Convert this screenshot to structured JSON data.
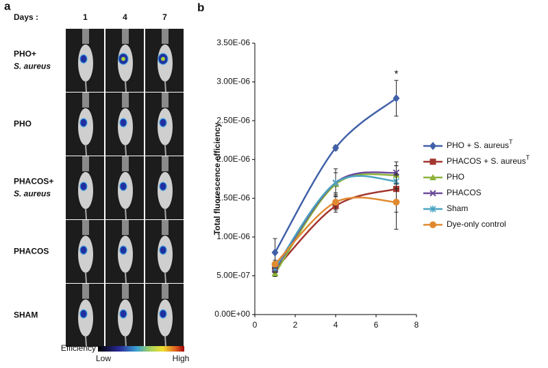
{
  "panel_a": {
    "label": "a",
    "days_label": "Days :",
    "days": [
      "1",
      "4",
      "7"
    ],
    "rows": [
      {
        "label": "PHO+",
        "label_italic": "S. aureus"
      },
      {
        "label": "PHO"
      },
      {
        "label": "PHACOS+",
        "label_italic": "S. aureus"
      },
      {
        "label": "PHACOS"
      },
      {
        "label": "SHAM"
      }
    ],
    "colorbar": {
      "title": "Efficiency",
      "low": "Low",
      "high": "High"
    }
  },
  "chart_data": {
    "type": "line",
    "panel_label": "b",
    "y_label": "Total fluorescence efficiency",
    "x": [
      1,
      4,
      7
    ],
    "xlim": [
      0,
      8
    ],
    "xticks": [
      0,
      2,
      4,
      6,
      8
    ],
    "ylim": [
      0,
      3.5e-06
    ],
    "yticks": [
      {
        "value": 0,
        "label": "0.00E+00"
      },
      {
        "value": 5e-07,
        "label": "5.00E-07"
      },
      {
        "value": 1e-06,
        "label": "1.00E-06"
      },
      {
        "value": 1.5e-06,
        "label": "1.50E-06"
      },
      {
        "value": 2e-06,
        "label": "2.00E-06"
      },
      {
        "value": 2.5e-06,
        "label": "2.50E-06"
      },
      {
        "value": 3e-06,
        "label": "3.00E-06"
      },
      {
        "value": 3.5e-06,
        "label": "3.50E-06"
      }
    ],
    "series": [
      {
        "name": "PHO + S. aureus",
        "sup": "T",
        "color": "#4060a8",
        "marker": "diamond",
        "values": [
          8e-07,
          2.15e-06,
          2.79e-06
        ],
        "errors": [
          1.8e-07,
          3e-08,
          2.3e-07
        ]
      },
      {
        "name": "PHACOS + S. aureus",
        "sup": "T",
        "color": "#a3362f",
        "marker": "square",
        "values": [
          5.8e-07,
          1.4e-06,
          1.62e-06
        ],
        "errors": [
          5e-08,
          8e-08,
          3e-07
        ]
      },
      {
        "name": "PHO",
        "color": "#8db33a",
        "marker": "triangle",
        "values": [
          5.3e-07,
          1.68e-06,
          1.8e-06
        ],
        "errors": [
          4e-08,
          1.5e-07,
          1.2e-07
        ]
      },
      {
        "name": "PHACOS",
        "color": "#6a4a9a",
        "marker": "cross",
        "values": [
          5.8e-07,
          1.7e-06,
          1.83e-06
        ],
        "errors": [
          4e-08,
          1.8e-07,
          1.4e-07
        ]
      },
      {
        "name": "Sham",
        "color": "#4ba4c2",
        "marker": "star",
        "values": [
          6e-07,
          1.7e-06,
          1.72e-06
        ],
        "errors": [
          4e-08,
          1.3e-07,
          1e-07
        ]
      },
      {
        "name": "Dye-only control",
        "color": "#e08a30",
        "marker": "circle",
        "values": [
          6.5e-07,
          1.45e-06,
          1.45e-06
        ],
        "errors": [
          5e-08,
          1e-07,
          3.5e-07
        ]
      }
    ],
    "annotations": [
      {
        "text": "*",
        "series": 0,
        "index": 2
      }
    ]
  }
}
